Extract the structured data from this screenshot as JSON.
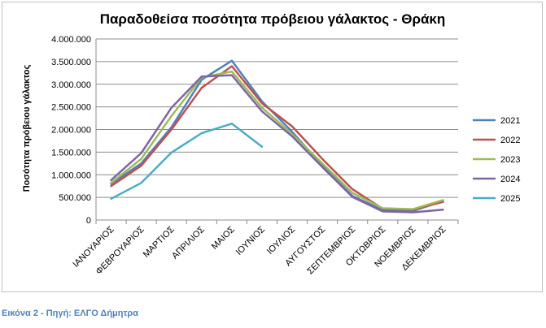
{
  "caption": "Εικόνα 2 - Πηγή: ΕΛΓΟ Δήμητρα",
  "chart_data": {
    "type": "line",
    "title": "Παραδοθείσα ποσότητα πρόβειου γάλακτος - Θράκη",
    "xlabel": "",
    "ylabel": "Ποσότητα πρόβειου γάλακτος",
    "ylim": [
      0,
      4000000
    ],
    "yticks": [
      0,
      500000,
      1000000,
      1500000,
      2000000,
      2500000,
      3000000,
      3500000,
      4000000
    ],
    "ytick_labels": [
      "0",
      "500.000",
      "1.000.000",
      "1.500.000",
      "2.000.000",
      "2.500.000",
      "3.000.000",
      "3.500.000",
      "4.000.000"
    ],
    "grid": true,
    "legend_position": "right",
    "categories": [
      "ΙΑΝΟΥΑΡΙΟΣ",
      "ΦΕΒΡΟΥΑΡΙΟΣ",
      "ΜΑΡΤΙΟΣ",
      "ΑΠΡΙΛΙΟΣ",
      "ΜΑΙΟΣ",
      "ΙΟΥΝΙΟΣ",
      "ΙΟΥΛΙΟΣ",
      "ΑΥΓΟΥΣΤΟΣ",
      "ΣΕΠΤΕΜΒΡΙΟΣ",
      "ΟΚΤΩΒΡΙΟΣ",
      "ΝΟΕΜΒΡΙΟΣ",
      "ΔΕΚΕΜΒΡΙΟΣ"
    ],
    "series": [
      {
        "name": "2021",
        "color": "#4f81bd",
        "values": [
          800000,
          1250000,
          2050000,
          3100000,
          3520000,
          2620000,
          1950000,
          1200000,
          530000,
          220000,
          200000,
          420000
        ]
      },
      {
        "name": "2022",
        "color": "#c0504d",
        "values": [
          750000,
          1200000,
          2000000,
          2920000,
          3400000,
          2580000,
          2070000,
          1350000,
          680000,
          250000,
          230000,
          400000
        ]
      },
      {
        "name": "2023",
        "color": "#9bbb59",
        "values": [
          820000,
          1350000,
          2300000,
          3150000,
          3280000,
          2480000,
          1900000,
          1250000,
          600000,
          260000,
          240000,
          440000
        ]
      },
      {
        "name": "2024",
        "color": "#8064a2",
        "values": [
          880000,
          1480000,
          2480000,
          3170000,
          3200000,
          2400000,
          1850000,
          1170000,
          510000,
          190000,
          170000,
          230000
        ]
      },
      {
        "name": "2025",
        "color": "#4bacc6",
        "values": [
          470000,
          820000,
          1490000,
          1920000,
          2130000,
          1620000,
          null,
          null,
          null,
          null,
          null,
          null
        ]
      }
    ]
  }
}
